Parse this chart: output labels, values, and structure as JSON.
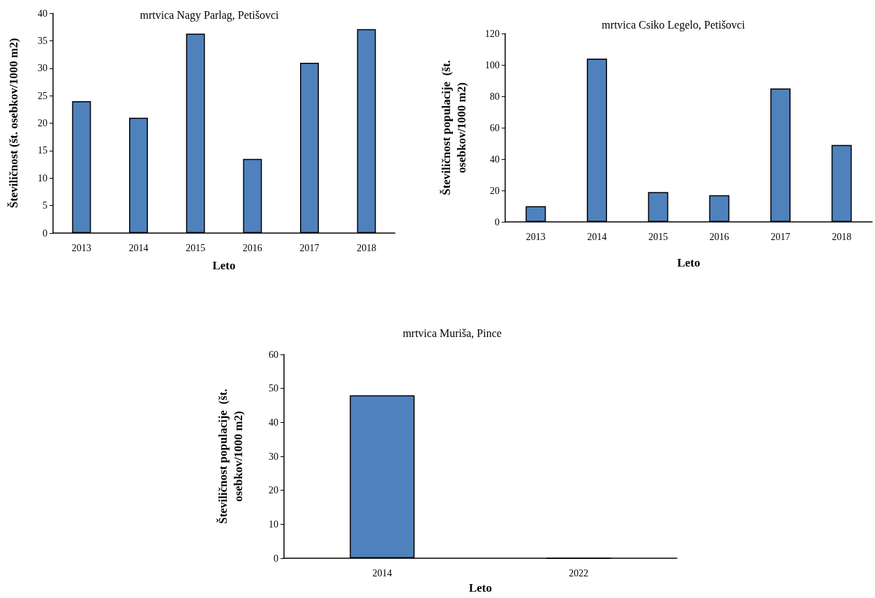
{
  "chart_data": [
    {
      "type": "bar",
      "title": "mrtvica Nagy Parlag, Petišovci",
      "xlabel": "Leto",
      "ylabel": "Številičnost (št. osebkov/1000 m2)",
      "categories": [
        "2013",
        "2014",
        "2015",
        "2016",
        "2017",
        "2018"
      ],
      "values": [
        24,
        21,
        36.3,
        13.5,
        31,
        37.1
      ],
      "color": "#4f81bd",
      "ylim": [
        0,
        40
      ],
      "yticks": [
        0,
        5,
        10,
        15,
        20,
        25,
        30,
        35,
        40
      ],
      "grid": false
    },
    {
      "type": "bar",
      "title": "mrtvica Csiko Legelo, Petišovci",
      "xlabel": "Leto",
      "ylabel": "Številičnost populacije  (št. osebkov/1000 m2)",
      "categories": [
        "2013",
        "2014",
        "2015",
        "2016",
        "2017",
        "2018"
      ],
      "values": [
        10,
        104,
        19,
        17,
        85,
        49
      ],
      "color": "#4f81bd",
      "ylim": [
        0,
        120
      ],
      "yticks": [
        0,
        20,
        40,
        60,
        80,
        100,
        120
      ],
      "grid": false
    },
    {
      "type": "bar",
      "title": "mrtvica Muriša, Pince",
      "xlabel": "Leto",
      "ylabel": "Številičnost populacije  (št. osebkov/1000 m2)",
      "categories": [
        "2014",
        "2022"
      ],
      "values": [
        48,
        0
      ],
      "color": "#4f81bd",
      "ylim": [
        0,
        60
      ],
      "yticks": [
        0,
        10,
        20,
        30,
        40,
        50,
        60
      ],
      "grid": false
    }
  ]
}
